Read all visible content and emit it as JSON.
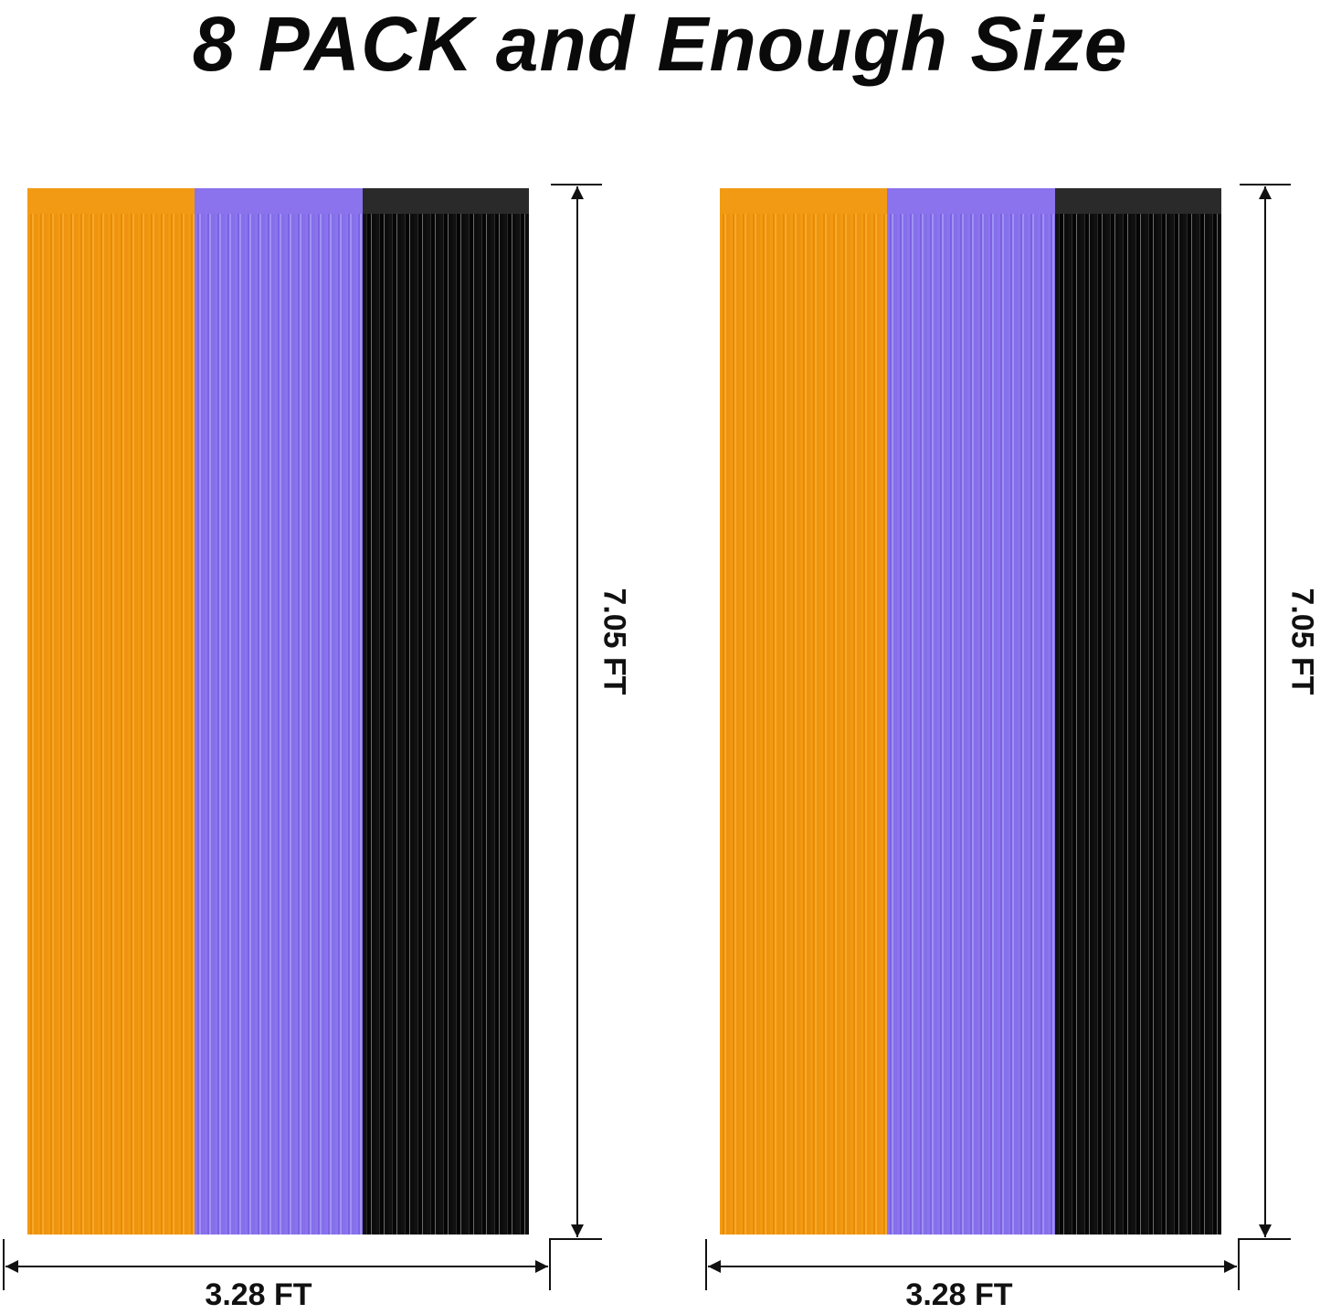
{
  "title": "8 PACK and Enough Size",
  "panels": [
    {
      "height_label": "7.05 FT",
      "width_label": "3.28 FT",
      "colors": [
        "#f39a14",
        "#8a73ec",
        "#111111"
      ]
    },
    {
      "height_label": "7.05 FT",
      "width_label": "3.28 FT",
      "colors": [
        "#f39a14",
        "#8a73ec",
        "#111111"
      ]
    }
  ]
}
